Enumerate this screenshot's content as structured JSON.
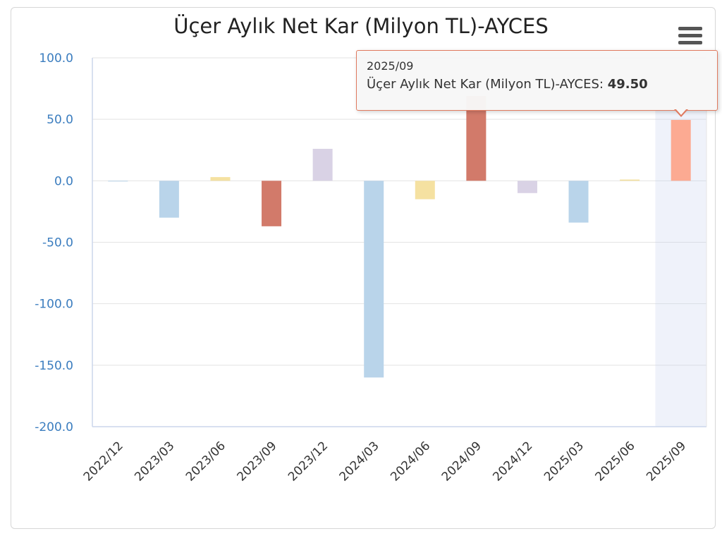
{
  "chart_data": {
    "type": "bar",
    "title": "Üçer Aylık Net Kar (Milyon TL)-AYCES",
    "categories": [
      "2022/12",
      "2023/03",
      "2023/06",
      "2023/09",
      "2023/12",
      "2024/03",
      "2024/06",
      "2024/09",
      "2024/12",
      "2025/03",
      "2025/06",
      "2025/09"
    ],
    "series": [
      {
        "name": "Üçer Aylık Net Kar (Milyon TL)-AYCES",
        "values": [
          0,
          -30,
          3,
          -37,
          26,
          -160,
          -15,
          69,
          -10,
          -34,
          1,
          49.5
        ]
      }
    ],
    "ylim": [
      -200,
      100
    ],
    "yticks": [
      "100.0",
      "50.0",
      "0.0",
      "-50.0",
      "-100.0",
      "-150.0",
      "-200.0"
    ],
    "bar_colors": [
      "#b9d4ea",
      "#b9d4ea",
      "#f5e1a1",
      "#d27a6a",
      "#d9d2e5",
      "#b9d4ea",
      "#f5e1a1",
      "#d27a6a",
      "#d9d2e5",
      "#b9d4ea",
      "#f5e1a1",
      "#fcaa92"
    ],
    "grid": true
  },
  "tooltip": {
    "x": "2025/09",
    "series": "Üçer Aylık Net Kar (Milyon TL)-AYCES:",
    "value": "49.50"
  }
}
